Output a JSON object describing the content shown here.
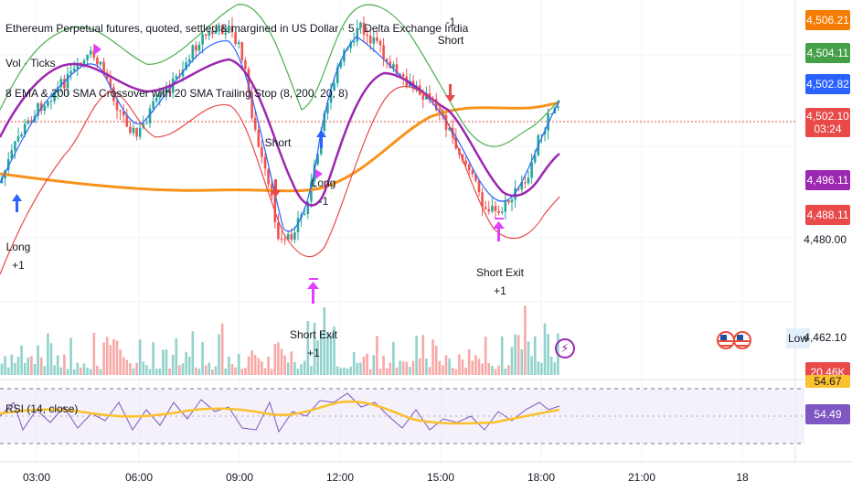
{
  "header": {
    "title": "Ethereum Perpetual futures, quoted, settled & margined in US Dollar · 5 · Delta Exchange India",
    "vol_label": "Vol · Ticks",
    "strategy_label": "8 EMA & 200 SMA Crossover with 20 SMA Trailing Stop (8, 200, 20, 8)",
    "rsi_label": "RSI (14, close)"
  },
  "price_tags": [
    {
      "text": "4,506.21",
      "color": "#f57c00"
    },
    {
      "text": "4,504.11",
      "color": "#43a047"
    },
    {
      "text": "4,502.82",
      "color": "#2962ff"
    },
    {
      "text": "4,502.10",
      "sub": "03:24",
      "color": "#e84a4a"
    },
    {
      "text": "4,496.11",
      "color": "#9c27b0"
    },
    {
      "text": "4,488.11",
      "color": "#e84a4a"
    }
  ],
  "axis_price": "4,480.00",
  "low_label": "Low",
  "low_value": "4,462.10",
  "vol_tag": "20.46K",
  "rsi_tags": {
    "upper": "54.67",
    "value": "54.49"
  },
  "time_axis": [
    "03:00",
    "06:00",
    "09:00",
    "12:00",
    "15:00",
    "18:00",
    "21:00",
    "18"
  ],
  "annotations": [
    {
      "text": "Long",
      "qty": "+1"
    },
    {
      "text": "Short",
      "qty": ""
    },
    {
      "text": "Long",
      "qty": "-1"
    },
    {
      "text": "Short Exit",
      "qty": "+1"
    },
    {
      "text": "Short",
      "qty": "-1"
    },
    {
      "text": "Short Exit",
      "qty": "+1"
    }
  ],
  "colors": {
    "up": "#26a69a",
    "down": "#ef5350",
    "sma200": "#f7931a",
    "ema8": "#2962ff",
    "upper_band": "#4caf50",
    "lower_band": "#e84a4a",
    "mid": "#9c27b0",
    "rsi": "#7e57c2",
    "rsi_ma": "#fbc02d"
  },
  "chart_data": {
    "type": "candlestick",
    "symbol": "ETH/USD perpetual",
    "interval": "5",
    "last_price": 4502.1,
    "ema8_last": 4502.82,
    "sma200_last": 4506.21,
    "upper_band_last": 4504.11,
    "mid_last": 4496.11,
    "lower_band_last": 4488.11,
    "rsi_last": 54.49,
    "rsi_ma_last": 54.67,
    "volume_last": "20.46K",
    "price_ticks": [
      4480.0
    ],
    "x_ticks": [
      "03:00",
      "06:00",
      "09:00",
      "12:00",
      "15:00",
      "18:00",
      "21:00",
      "18"
    ]
  }
}
